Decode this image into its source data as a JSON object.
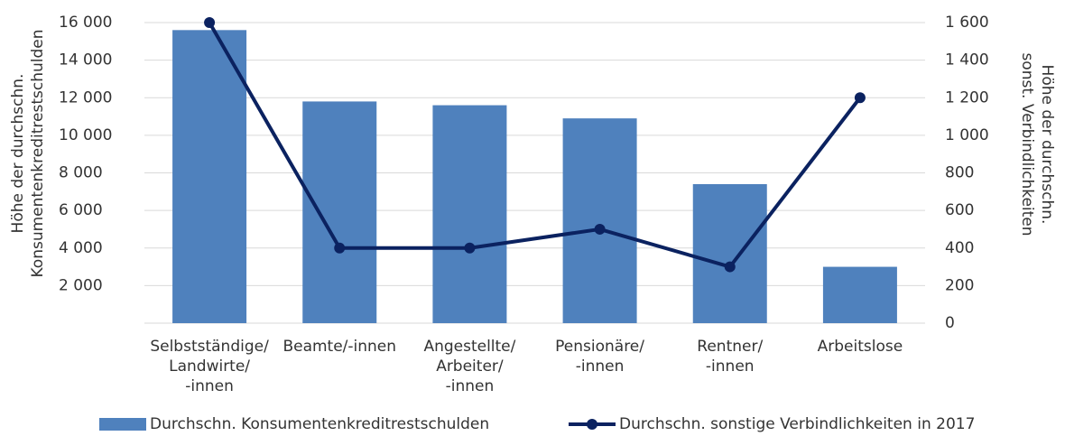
{
  "chart_data": {
    "type": "bar_line",
    "y_axis_label": "Höhe der durchschn.\nKonsumentenkreditrestschulden",
    "y2_axis_label": "Höhe der durchschn.\nsonst. Verbindlichkeiten",
    "categories": [
      "Selbstständige/\nLandwirte/\n-innen",
      "Beamte/-innen",
      "Angestellte/\nArbeiter/\n-innen",
      "Pensionäre/\n-innen",
      "Rentner/\n-innen",
      "Arbeitslose"
    ],
    "series": [
      {
        "name": "Durchschn. Konsumentenkreditrestschulden",
        "type": "bar",
        "color": "#4f81bd",
        "values": [
          15600,
          11800,
          11600,
          10900,
          7400,
          3000
        ]
      },
      {
        "name": "Durchschn. sonstige Verbindlichkeiten in 2017",
        "type": "line",
        "axis": "y2",
        "color": "#0b2260",
        "values": [
          1600,
          400,
          400,
          500,
          300,
          1200
        ]
      }
    ],
    "ylim": [
      0,
      16000
    ],
    "yticks": [
      {
        "value": 2000,
        "label": "2 000"
      },
      {
        "value": 4000,
        "label": "4 000"
      },
      {
        "value": 6000,
        "label": "6 000"
      },
      {
        "value": 8000,
        "label": "8 000"
      },
      {
        "value": 10000,
        "label": "10 000"
      },
      {
        "value": 12000,
        "label": "12 000"
      },
      {
        "value": 14000,
        "label": "14 000"
      },
      {
        "value": 16000,
        "label": "16 000"
      }
    ],
    "y2lim": [
      0,
      1600
    ],
    "y2ticks": [
      0,
      200,
      400,
      600,
      800,
      {
        "value": 1000,
        "label": "1 000"
      },
      {
        "value": 1200,
        "label": "1 200"
      },
      {
        "value": 1400,
        "label": "1 400"
      },
      {
        "value": 1600,
        "label": "1 600"
      }
    ],
    "grid": true,
    "legend": "bottom"
  }
}
